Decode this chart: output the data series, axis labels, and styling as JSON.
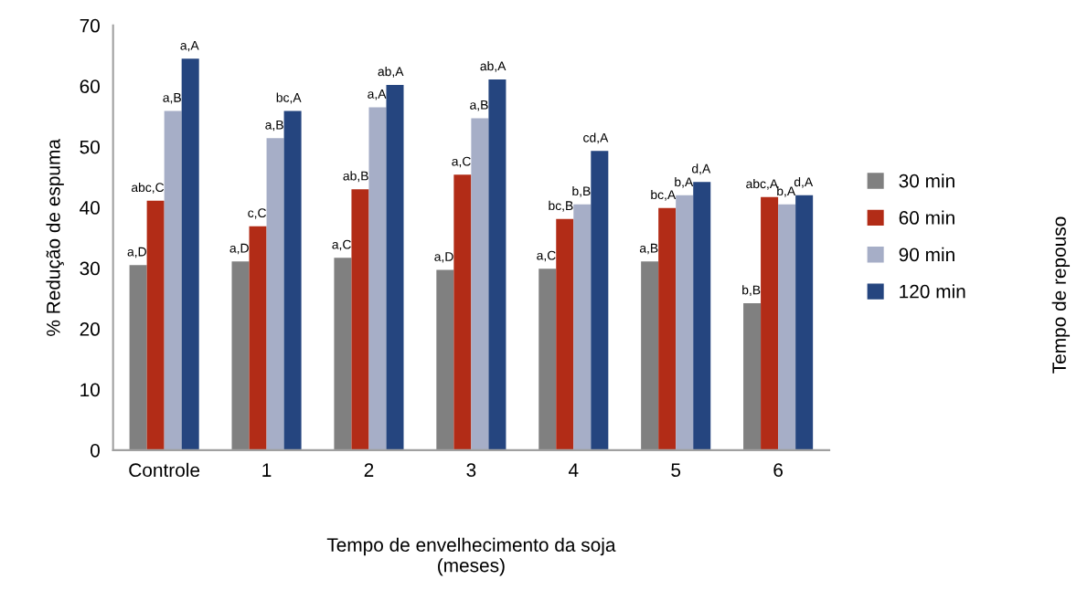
{
  "chart_data": {
    "type": "bar",
    "xlabel": "Tempo de envelhecimento da soja\n(meses)",
    "ylabel": "% Redução de espuma",
    "legend_title": "Tempo de repouso",
    "categories": [
      "Controle",
      "1",
      "2",
      "3",
      "4",
      "5",
      "6"
    ],
    "ylim": [
      0,
      70
    ],
    "yticks": [
      0,
      10,
      20,
      30,
      40,
      50,
      60,
      70
    ],
    "grid": false,
    "legend": "right",
    "series": [
      {
        "name": "30 min",
        "color": "#808080",
        "values": [
          30.5,
          31.1,
          31.7,
          29.7,
          29.9,
          31.1,
          24.2
        ],
        "value_labels": [
          "a,D",
          "a,D",
          "a,C",
          "a,D",
          "a,C",
          "a,B",
          "b,B"
        ]
      },
      {
        "name": "60 min",
        "color": "#b22c17",
        "values": [
          41.1,
          36.9,
          43.0,
          45.4,
          38.1,
          39.9,
          41.7
        ],
        "value_labels": [
          "abc,C",
          "c,C",
          "ab,B",
          "a,C",
          "bc,B",
          "bc,A",
          "abc,A"
        ]
      },
      {
        "name": "90 min",
        "color": "#a6aec7",
        "values": [
          55.9,
          51.4,
          56.5,
          54.7,
          40.5,
          42.0,
          40.5
        ],
        "value_labels": [
          "a,B",
          "a,B",
          "a,A",
          "a,B",
          "b,B",
          "b,A",
          "b,A"
        ]
      },
      {
        "name": "120 min",
        "color": "#25457f",
        "values": [
          64.5,
          55.9,
          60.2,
          61.1,
          49.3,
          44.2,
          42.0
        ],
        "value_labels": [
          "a,A",
          "bc,A",
          "ab,A",
          "ab,A",
          "cd,A",
          "d,A",
          "d,A"
        ]
      }
    ]
  }
}
